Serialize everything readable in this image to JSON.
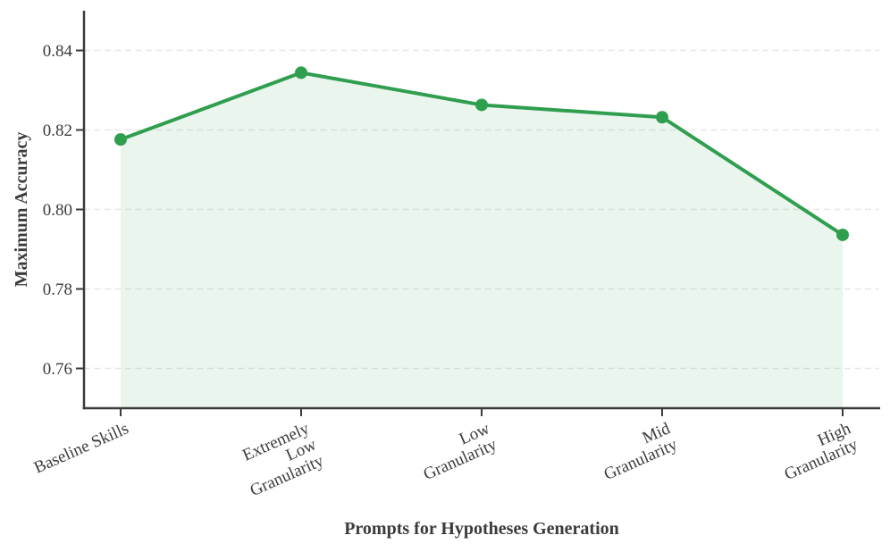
{
  "chart_data": {
    "type": "line",
    "title": "",
    "xlabel": "Prompts for Hypotheses Generation",
    "ylabel": "Maximum Accuracy",
    "categories": [
      "Baseline Skills",
      "Extremely\nLow\nGranularity",
      "Low\nGranularity",
      "Mid\nGranularity",
      "High\nGranularity"
    ],
    "series": [
      {
        "name": "Maximum Accuracy",
        "values": [
          0.8176,
          0.8344,
          0.8263,
          0.8232,
          0.7936
        ]
      }
    ],
    "ytick_labels": [
      "0.76",
      "0.78",
      "0.80",
      "0.82",
      "0.84"
    ],
    "ytick_values": [
      0.76,
      0.78,
      0.8,
      0.82,
      0.84
    ],
    "ylim": [
      0.75,
      0.85
    ],
    "grid": {
      "horizontal": true,
      "style": "dashed",
      "color": "#e7e7e7"
    },
    "legend": "none",
    "colors": {
      "line": "#2f9e4e",
      "marker": "#2f9e4e",
      "fill": "#2f9e4e",
      "fill_opacity": 0.1,
      "spine": "#3a3a3a",
      "text": "#3b3b3b",
      "background": "#ffffff"
    },
    "marker": "circle",
    "xlabel_rotation_deg": -24
  }
}
